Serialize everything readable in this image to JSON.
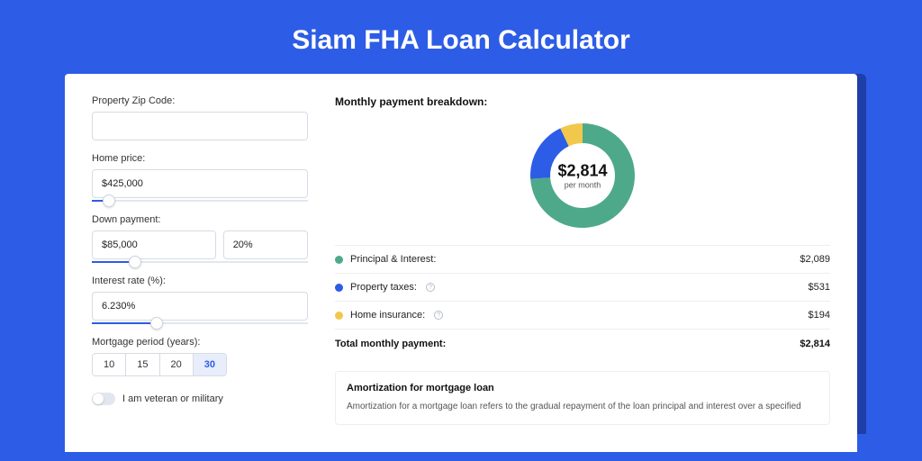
{
  "page": {
    "title": "Siam FHA Loan Calculator",
    "background_color": "#2d5ce6",
    "shadow_color": "#1e3ea8",
    "card_background": "#ffffff"
  },
  "form": {
    "zip": {
      "label": "Property Zip Code:",
      "value": ""
    },
    "home_price": {
      "label": "Home price:",
      "value": "$425,000",
      "slider_pct": 8
    },
    "down_payment": {
      "label": "Down payment:",
      "amount": "$85,000",
      "percent": "20%",
      "slider_pct": 20
    },
    "interest_rate": {
      "label": "Interest rate (%):",
      "value": "6.230%",
      "slider_pct": 30
    },
    "mortgage_period": {
      "label": "Mortgage period (years):",
      "options": [
        "10",
        "15",
        "20",
        "30"
      ],
      "selected": "30"
    },
    "veteran": {
      "label": "I am veteran or military",
      "on": false
    }
  },
  "breakdown": {
    "title": "Monthly payment breakdown:",
    "donut": {
      "amount": "$2,814",
      "sub": "per month",
      "segments": [
        {
          "key": "pi",
          "pct": 74,
          "color": "#4ea98b"
        },
        {
          "key": "tax",
          "pct": 19,
          "color": "#2d5ce6"
        },
        {
          "key": "ins",
          "pct": 7,
          "color": "#f2c84c"
        }
      ]
    },
    "items": [
      {
        "label": "Principal & Interest:",
        "value": "$2,089",
        "color": "#4ea98b",
        "info": false
      },
      {
        "label": "Property taxes:",
        "value": "$531",
        "color": "#2d5ce6",
        "info": true
      },
      {
        "label": "Home insurance:",
        "value": "$194",
        "color": "#f2c84c",
        "info": true
      }
    ],
    "total": {
      "label": "Total monthly payment:",
      "value": "$2,814"
    }
  },
  "amortization": {
    "title": "Amortization for mortgage loan",
    "text": "Amortization for a mortgage loan refers to the gradual repayment of the loan principal and interest over a specified"
  }
}
